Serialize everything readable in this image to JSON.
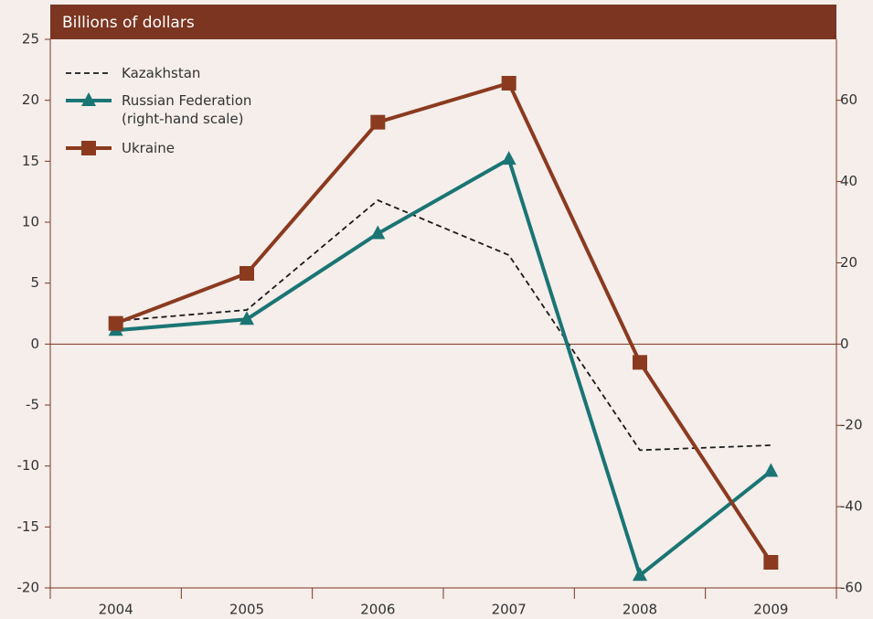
{
  "chart_data": {
    "type": "line",
    "title": "Billions of dollars",
    "categories": [
      "2004",
      "2005",
      "2006",
      "2007",
      "2008",
      "2009"
    ],
    "ylim": [
      -20,
      25
    ],
    "yticks": [
      -20,
      -15,
      -10,
      -5,
      0,
      5,
      10,
      15,
      20,
      25
    ],
    "y2lim": [
      -60,
      75
    ],
    "y2ticks": [
      -60,
      -40,
      -20,
      0,
      20,
      40,
      60
    ],
    "legend": "top-left",
    "series": [
      {
        "name": "Kazakhstan",
        "color": "#1a1a1a",
        "style": "dashed",
        "values": [
          1.9,
          2.8,
          11.8,
          7.3,
          -8.7,
          -8.3
        ]
      },
      {
        "name": "Russian Federation (right-hand scale)",
        "color": "#1a7574",
        "marker": "triangle",
        "axis": "y2",
        "values": [
          3.4,
          6.1,
          27.2,
          45.5,
          -56.9,
          -31.3
        ]
      },
      {
        "name": "Ukraine",
        "color": "#8b3a1f",
        "marker": "square",
        "values": [
          1.7,
          5.8,
          18.2,
          21.4,
          -1.5,
          -17.9
        ]
      }
    ]
  }
}
